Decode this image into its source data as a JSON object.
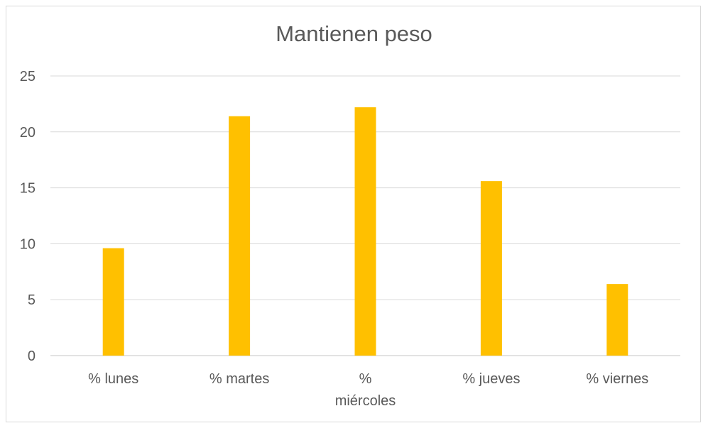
{
  "chart_data": {
    "type": "bar",
    "title": "Mantienen peso",
    "categories": [
      "% lunes",
      "% martes",
      "% miércoles",
      "% jueves",
      "% viernes"
    ],
    "category_label_lines": [
      [
        "% lunes"
      ],
      [
        "% martes"
      ],
      [
        "%",
        "miércoles"
      ],
      [
        "% jueves"
      ],
      [
        "% viernes"
      ]
    ],
    "values": [
      9.6,
      21.4,
      22.2,
      15.6,
      6.4
    ],
    "ylim": [
      0,
      25
    ],
    "yticks": [
      "0",
      "5",
      "10",
      "15",
      "20",
      "25"
    ],
    "ytick_values": [
      0,
      5,
      10,
      15,
      20,
      25
    ],
    "grid": true,
    "bar_color": "#ffc000",
    "grid_color": "#d9d9d9"
  }
}
